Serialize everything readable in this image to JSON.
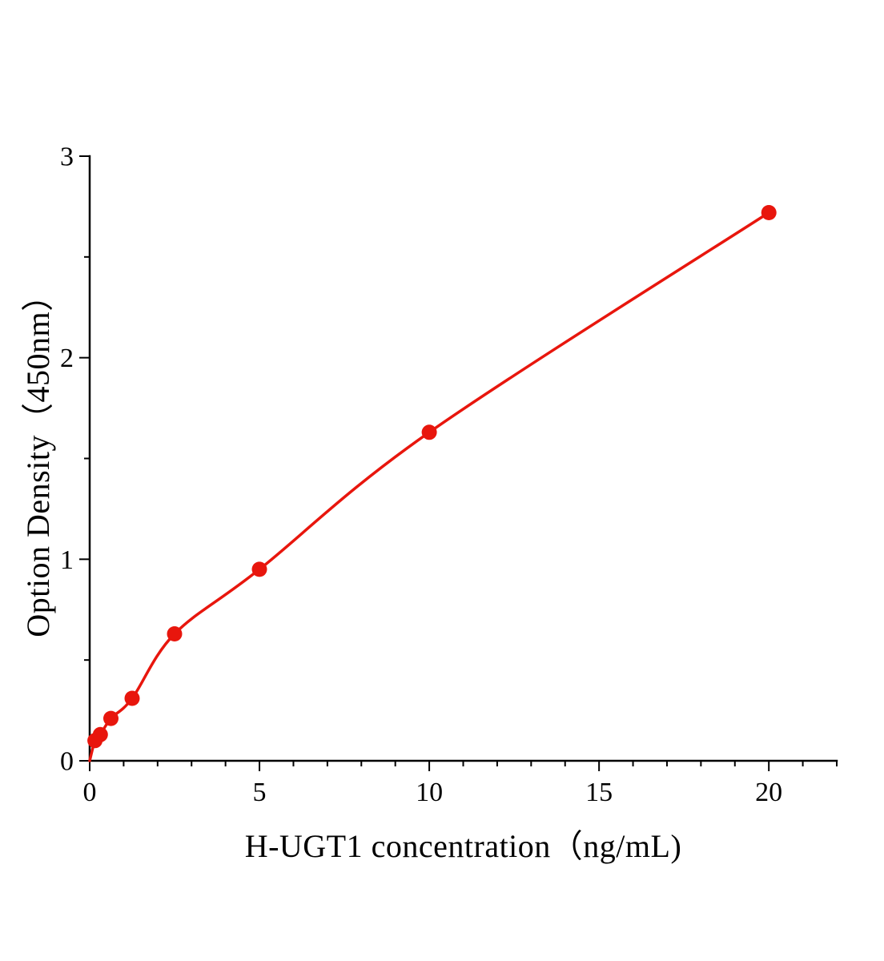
{
  "figure": {
    "background": "#ffffff",
    "axis_color": "#000000"
  },
  "chart_data": {
    "type": "scatter",
    "title": "",
    "xlabel": "H-UGT1 concentration（ng/mL)",
    "ylabel": "Option Density（450nm）",
    "x": [
      0.156,
      0.313,
      0.625,
      1.25,
      2.5,
      5,
      10,
      20
    ],
    "y": [
      0.1,
      0.13,
      0.21,
      0.31,
      0.63,
      0.95,
      1.63,
      2.72
    ],
    "curve_origin": [
      0,
      0
    ],
    "xlim": [
      0,
      22
    ],
    "ylim": [
      0,
      3
    ],
    "x_major_ticks": [
      0,
      5,
      10,
      15,
      20
    ],
    "y_major_ticks": [
      0,
      1,
      2,
      3
    ],
    "x_minor_step": 1,
    "y_minor_step": 0.5,
    "grid": false,
    "legend_position": "none",
    "line_color": "#e8160d",
    "marker_color": "#e8160d",
    "marker_size": 9.5
  }
}
